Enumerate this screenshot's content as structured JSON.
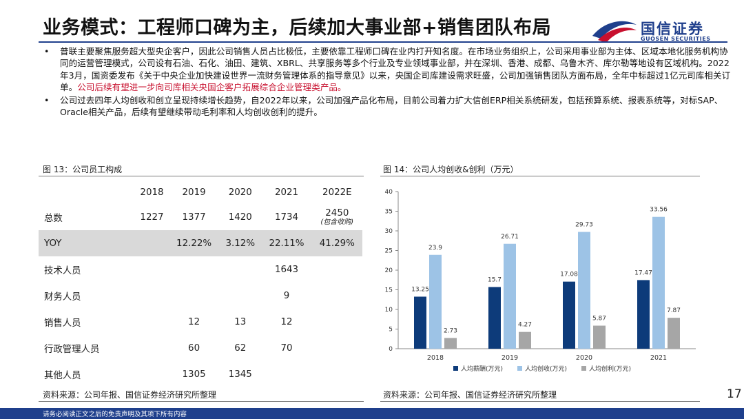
{
  "header": {
    "title": "业务模式：工程师口碑为主，后续加大事业部+销售团队布局",
    "logo_cn": "国信证券",
    "logo_en": "GUOSEN SECURITIES",
    "accent": "#1f3f8c",
    "logo_red": "#c8102e"
  },
  "bullets": [
    {
      "marker": "•",
      "text": "普联主要聚焦服务超大型央企客户，因此公司销售人员占比极低，主要依靠工程师口碑在业内打开知名度。在市场业务组织上，公司采用事业部为主体、区域本地化服务机构协同的运营管理模式，公司设有石油、石化、油田、建筑、XBRL、共享服务等多个行业及专业领域事业部，并在深圳、香港、成都、乌鲁木齐、库尔勒等地设有区域机构。2022年3月，国资委发布《关于中央企业加快建设世界一流财务管理体系的指导意见》以来，央国企司库建设需求旺盛，公司加强销售团队方面布局，全年中标超过1亿元司库相关订单。",
      "highlight": "公司后续有望进一步向司库相关央国企客户拓展综合企业管理类产品。"
    },
    {
      "marker": "•",
      "text": "公司过去四年人均创收和创立呈现持续增长趋势，自2022年以来，公司加强产品化布局，目前公司着力扩大信创ERP相关系统研发，包括预算系统、报表系统等，对标SAP、Oracle相关产品，后续有望继续带动毛利率和人均创收创利的提升。",
      "highlight": ""
    }
  ],
  "left_figure": {
    "title": "图 13：公司员工构成",
    "headers": [
      "",
      "2018",
      "2019",
      "2020",
      "2021",
      "2022E"
    ],
    "rows": [
      {
        "cells": [
          "总数",
          "1227",
          "1377",
          "1420",
          "1734",
          "2450"
        ],
        "note": "(包含收购)",
        "hl": false
      },
      {
        "cells": [
          "YOY",
          "",
          "12.22%",
          "3.12%",
          "22.11%",
          "41.29%"
        ],
        "hl": true
      },
      {
        "cells": [
          "技术人员",
          "",
          "",
          "",
          "1643",
          ""
        ],
        "hl": false
      },
      {
        "cells": [
          "财务人员",
          "",
          "",
          "",
          "9",
          ""
        ],
        "hl": false
      },
      {
        "cells": [
          "销售人员",
          "",
          "12",
          "13",
          "12",
          ""
        ],
        "hl": false
      },
      {
        "cells": [
          "行政管理人员",
          "",
          "60",
          "62",
          "70",
          ""
        ],
        "hl": false
      },
      {
        "cells": [
          "其他人员",
          "",
          "1305",
          "1345",
          "",
          ""
        ],
        "hl": false
      }
    ],
    "source": "资料来源：公司年报、国信证券经济研究所整理"
  },
  "right_figure": {
    "title": "图 14：公司人均创收&创利（万元）",
    "source": "资料来源：公司年报、国信证券经济研究所整理"
  },
  "chart_data": {
    "type": "bar",
    "title": "图 14：公司人均创收&创利（万元）",
    "categories": [
      "2018",
      "2019",
      "2020",
      "2021"
    ],
    "series": [
      {
        "name": "人均薪酬(万元)",
        "values": [
          13.25,
          15.7,
          17.08,
          17.47
        ],
        "color": "#0d3b7a"
      },
      {
        "name": "人均创收(万元)",
        "values": [
          23.9,
          26.71,
          29.73,
          33.56
        ],
        "color": "#9dc3e6"
      },
      {
        "name": "人均创利(万元)",
        "values": [
          2.73,
          4.27,
          5.87,
          7.87
        ],
        "color": "#a6a6a6"
      }
    ],
    "ylim": [
      0,
      40
    ],
    "yticks": [
      0,
      5,
      10,
      15,
      20,
      25,
      30,
      35,
      40
    ],
    "xlabel": "",
    "ylabel": "",
    "legend": "bottom"
  },
  "footer": {
    "disclaimer": "请务必阅读正文之后的免责声明及其项下所有内容",
    "page": "17"
  }
}
